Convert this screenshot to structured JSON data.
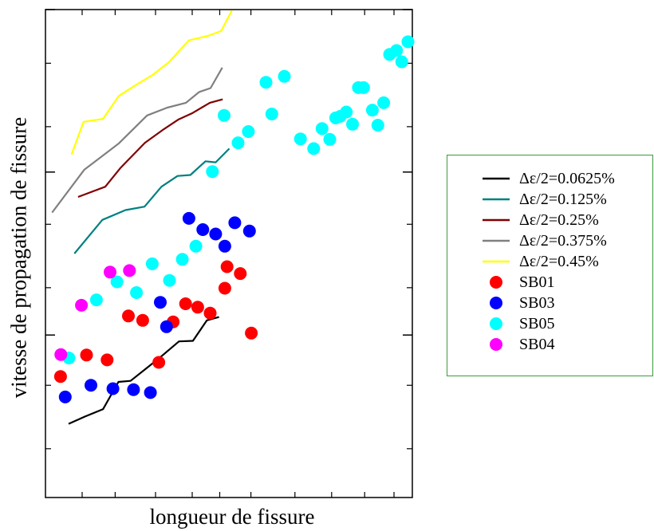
{
  "chart_data": {
    "type": "scatter",
    "title": "",
    "xlabel": "longueur de fissure",
    "ylabel": "vitesse de propagation de fissure",
    "xlim": [
      0,
      100
    ],
    "ylim": [
      0,
      100
    ],
    "y_major_ticks": [
      33.3,
      66.7,
      100
    ],
    "x_minor_ticks": [
      10,
      19,
      30,
      40,
      47.5,
      56,
      68,
      78,
      87,
      95
    ],
    "y_minor_ticks": [
      10,
      23,
      43,
      56,
      76,
      89
    ],
    "grid": false,
    "legend_position": "right",
    "lines": [
      {
        "name": "Δε/2=0.0625%",
        "color": "#000000",
        "points": [
          [
            6.3,
            15.1
          ],
          [
            10.8,
            16.6
          ],
          [
            15.7,
            18.1
          ],
          [
            19.9,
            23.7
          ],
          [
            23.2,
            23.9
          ],
          [
            27.4,
            26.4
          ],
          [
            31.4,
            28.8
          ],
          [
            36.4,
            32.0
          ],
          [
            40.2,
            32.1
          ],
          [
            44.0,
            36.3
          ],
          [
            47.3,
            37.0
          ]
        ]
      },
      {
        "name": "Δε/2=0.125%",
        "color": "#008080",
        "points": [
          [
            7.9,
            50.0
          ],
          [
            15.5,
            56.9
          ],
          [
            21.8,
            58.9
          ],
          [
            27.0,
            59.6
          ],
          [
            31.6,
            63.7
          ],
          [
            36.0,
            65.9
          ],
          [
            39.5,
            66.1
          ],
          [
            43.6,
            68.9
          ],
          [
            46.4,
            68.7
          ],
          [
            50.1,
            71.5
          ]
        ]
      },
      {
        "name": "Δε/2=0.25%",
        "color": "#800000",
        "points": [
          [
            8.9,
            61.6
          ],
          [
            16.3,
            63.7
          ],
          [
            20.4,
            67.5
          ],
          [
            27.1,
            72.7
          ],
          [
            32.3,
            75.5
          ],
          [
            36.3,
            77.5
          ],
          [
            40.1,
            78.8
          ],
          [
            44.8,
            80.9
          ],
          [
            48.3,
            81.6
          ]
        ]
      },
      {
        "name": "Δε/2=0.375%",
        "color": "#808080",
        "points": [
          [
            1.8,
            58.4
          ],
          [
            10.6,
            67.2
          ],
          [
            19.9,
            72.5
          ],
          [
            27.7,
            78.3
          ],
          [
            33.2,
            79.9
          ],
          [
            38.3,
            80.9
          ],
          [
            41.9,
            83.1
          ],
          [
            45.0,
            83.9
          ],
          [
            48.2,
            88.1
          ]
        ]
      },
      {
        "name": "Δε/2=0.45%",
        "color": "#ffff00",
        "points": [
          [
            7.1,
            70.3
          ],
          [
            10.4,
            77.0
          ],
          [
            15.7,
            77.6
          ],
          [
            20.0,
            82.3
          ],
          [
            24.8,
            84.6
          ],
          [
            29.4,
            86.7
          ],
          [
            33.6,
            89.2
          ],
          [
            39.1,
            93.7
          ],
          [
            44.3,
            94.6
          ],
          [
            47.9,
            95.6
          ],
          [
            50.8,
            99.8
          ]
        ]
      }
    ],
    "series": [
      {
        "name": "SB01",
        "color": "#ff0000",
        "points": [
          [
            4.1,
            24.8
          ],
          [
            11.2,
            29.2
          ],
          [
            16.8,
            28.2
          ],
          [
            22.6,
            37.2
          ],
          [
            26.5,
            36.3
          ],
          [
            30.9,
            27.7
          ],
          [
            34.8,
            36.0
          ],
          [
            38.2,
            39.7
          ],
          [
            41.5,
            39.0
          ],
          [
            44.9,
            37.8
          ],
          [
            48.9,
            42.9
          ],
          [
            49.5,
            47.3
          ],
          [
            53.1,
            45.9
          ],
          [
            56.1,
            33.7
          ]
        ]
      },
      {
        "name": "SB03",
        "color": "#0000ff",
        "points": [
          [
            5.4,
            20.6
          ],
          [
            12.4,
            23.0
          ],
          [
            18.4,
            22.3
          ],
          [
            24.0,
            22.1
          ],
          [
            28.6,
            21.5
          ],
          [
            31.3,
            40.0
          ],
          [
            33.0,
            35.0
          ],
          [
            39.1,
            57.2
          ],
          [
            42.9,
            54.9
          ],
          [
            46.4,
            54.0
          ],
          [
            48.9,
            51.5
          ],
          [
            51.6,
            56.3
          ],
          [
            55.6,
            54.6
          ]
        ]
      },
      {
        "name": "SB05",
        "color": "#00ffff",
        "points": [
          [
            6.4,
            28.6
          ],
          [
            13.9,
            40.5
          ],
          [
            19.5,
            44.2
          ],
          [
            24.8,
            42.0
          ],
          [
            29.1,
            47.9
          ],
          [
            33.8,
            44.5
          ],
          [
            37.3,
            48.8
          ],
          [
            41.0,
            51.5
          ],
          [
            45.5,
            66.8
          ],
          [
            48.7,
            78.3
          ],
          [
            52.5,
            72.7
          ],
          [
            55.3,
            75.0
          ],
          [
            60.1,
            85.1
          ],
          [
            61.7,
            78.6
          ],
          [
            65.1,
            86.3
          ],
          [
            69.5,
            73.5
          ],
          [
            73.1,
            71.5
          ],
          [
            75.4,
            75.6
          ],
          [
            77.5,
            73.4
          ],
          [
            79.1,
            77.8
          ],
          [
            80.3,
            78.1
          ],
          [
            82.0,
            79.0
          ],
          [
            83.7,
            76.5
          ],
          [
            85.3,
            84.0
          ],
          [
            86.7,
            84.0
          ],
          [
            89.1,
            79.4
          ],
          [
            90.6,
            76.3
          ],
          [
            92.2,
            80.9
          ],
          [
            93.8,
            90.8
          ],
          [
            95.7,
            91.6
          ],
          [
            97.1,
            89.3
          ],
          [
            98.8,
            93.4
          ]
        ]
      },
      {
        "name": "SB04",
        "color": "#ff00ff",
        "points": [
          [
            4.2,
            29.3
          ],
          [
            9.8,
            39.4
          ],
          [
            17.6,
            46.2
          ],
          [
            22.9,
            46.5
          ]
        ]
      }
    ]
  }
}
